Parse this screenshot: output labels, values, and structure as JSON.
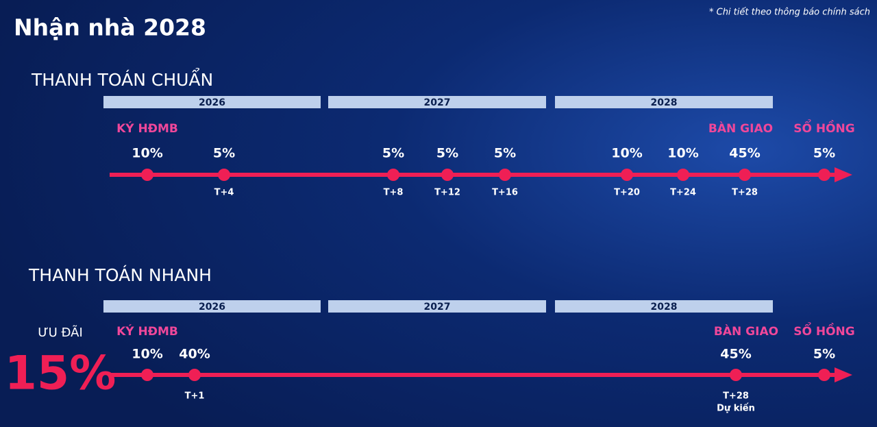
{
  "header": {
    "title": "Nhận nhà 2028",
    "note": "* Chi tiết theo thông báo chính sách"
  },
  "sections": [
    {
      "title": "THANH TOÁN CHUẨN",
      "years": [
        "2026",
        "2027",
        "2028"
      ],
      "milestones": [
        "KÝ HĐMB",
        "BÀN GIAO",
        "SỔ HỒNG"
      ],
      "payments": [
        {
          "percent": "10%"
        },
        {
          "percent": "5%",
          "time": "T+4"
        },
        {
          "percent": "5%",
          "time": "T+8"
        },
        {
          "percent": "5%",
          "time": "T+12"
        },
        {
          "percent": "5%",
          "time": "T+16"
        },
        {
          "percent": "10%",
          "time": "T+20"
        },
        {
          "percent": "10%",
          "time": "T+24"
        },
        {
          "percent": "45%",
          "time": "T+28"
        },
        {
          "percent": "5%"
        }
      ]
    },
    {
      "title": "THANH TOÁN NHANH",
      "promo": {
        "label": "ƯU ĐÃI",
        "value": "15%"
      },
      "years": [
        "2026",
        "2027",
        "2028"
      ],
      "milestones": [
        "KÝ HĐMB",
        "BÀN GIAO",
        "SỔ HỒNG"
      ],
      "payments": [
        {
          "percent": "10%"
        },
        {
          "percent": "40%",
          "time": "T+1"
        },
        {
          "percent": "45%",
          "time": "T+28",
          "note": "Dự kiến"
        },
        {
          "percent": "5%"
        }
      ]
    }
  ]
}
